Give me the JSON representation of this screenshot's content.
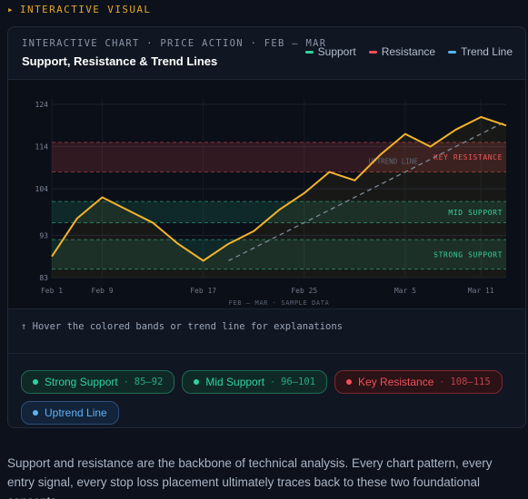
{
  "section": {
    "arrow": "▸",
    "label": "INTERACTIVE VISUAL"
  },
  "card": {
    "eyebrow": "INTERACTIVE CHART · PRICE ACTION · FEB – MAR",
    "title": "Support, Resistance & Trend Lines",
    "legend": [
      {
        "label": "Support",
        "color": "#2fd3a0"
      },
      {
        "label": "Resistance",
        "color": "#f0515a"
      },
      {
        "label": "Trend Line",
        "color": "#5fb2f0"
      }
    ]
  },
  "chart_data": {
    "type": "line",
    "x": [
      "Feb 1",
      "Feb 5",
      "Feb 9",
      "Feb 12",
      "Feb 13",
      "Feb 15",
      "Feb 17",
      "Feb 19",
      "Feb 21",
      "Feb 23",
      "Feb 25",
      "Feb 27",
      "Mar 1",
      "Mar 3",
      "Mar 5",
      "Mar 7",
      "Mar 9",
      "Mar 11",
      "Mar 12"
    ],
    "x_ticks": [
      "Feb 1",
      "Feb 9",
      "Feb 17",
      "Feb 25",
      "Mar 5",
      "Mar 11"
    ],
    "y_ticks": [
      83,
      93,
      104,
      114,
      124
    ],
    "ylim": [
      83,
      124
    ],
    "series": [
      {
        "values": [
          88,
          97,
          102,
          99,
          96,
          91,
          87,
          91,
          94,
          99,
          103,
          108,
          106,
          112,
          117,
          114,
          118,
          121,
          119
        ],
        "color": "#f4b429"
      }
    ],
    "bands": [
      {
        "label": "STRONG SUPPORT",
        "low": 85,
        "high": 92,
        "color": "#2fd3a0"
      },
      {
        "label": "MID SUPPORT",
        "low": 96,
        "high": 101,
        "color": "#2fd3a0"
      },
      {
        "label": "KEY RESISTANCE",
        "low": 108,
        "high": 115,
        "color": "#f0515a"
      }
    ],
    "trendline": {
      "label": "UPTREND LINE",
      "from": [
        7,
        87
      ],
      "to": [
        18,
        120
      ],
      "color": "#7f8a99"
    },
    "xlabel": "FEB – MAR · SAMPLE DATA"
  },
  "hint": "↑ Hover the colored bands or trend line for explanations",
  "pills": [
    {
      "label": "Strong Support",
      "sep": "·",
      "range": "85–92"
    },
    {
      "label": "Mid Support",
      "sep": "·",
      "range": "96–101"
    },
    {
      "label": "Key Resistance",
      "sep": "·",
      "range": "108–115"
    },
    {
      "label": "Uptrend Line"
    }
  ],
  "body_text": "Support and resistance are the backbone of technical analysis. Every chart pattern, every entry signal, every stop loss placement ultimately traces back to these two foundational concepts."
}
